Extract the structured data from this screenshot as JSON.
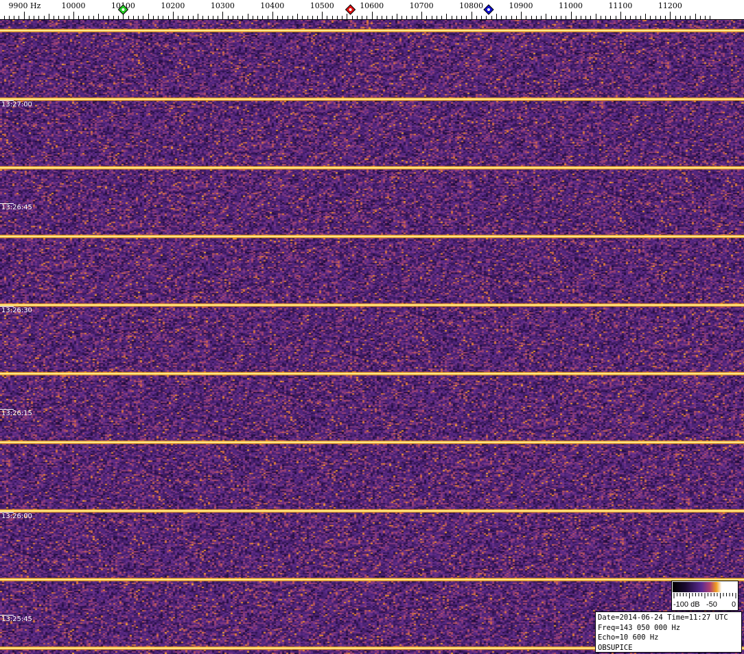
{
  "chart_data": {
    "type": "heatmap",
    "x_unit": "Hz",
    "x_range": [
      9850,
      11280
    ],
    "x_ticks": [
      "9900 Hz",
      "10000",
      "10100",
      "10200",
      "10300",
      "10400",
      "10500",
      "10600",
      "10700",
      "10800",
      "10900",
      "11000",
      "11100",
      "11200"
    ],
    "x_tick_values": [
      9900,
      10000,
      10100,
      10200,
      10300,
      10400,
      10500,
      10600,
      10700,
      10800,
      10900,
      11000,
      11100,
      11200
    ],
    "y_labels": [
      "13:27:00",
      "13:26:45",
      "13:26:30",
      "13:26:15",
      "13:26:00",
      "13:25:45"
    ],
    "markers": [
      {
        "freq": 10100,
        "color": "#22cc22"
      },
      {
        "freq": 10557,
        "color": "#dd1111"
      },
      {
        "freq": 10835,
        "color": "#1111cc"
      }
    ],
    "horizontal_lines_interval_s": 10,
    "colorbar": {
      "labels": [
        "-100 dB",
        "-50",
        "0"
      ],
      "min": -100,
      "max": 0
    },
    "colors": {
      "background": "#5a2a8a",
      "speckle": "#e08a2a",
      "line": "#ffd040"
    }
  },
  "info": {
    "line1": "Date=2014-06-24 Time=11:27 UTC",
    "line2": "Freq=143 050 000 Hz",
    "line3": "Echo=10 600 Hz",
    "line4": "OBSUPICE"
  }
}
